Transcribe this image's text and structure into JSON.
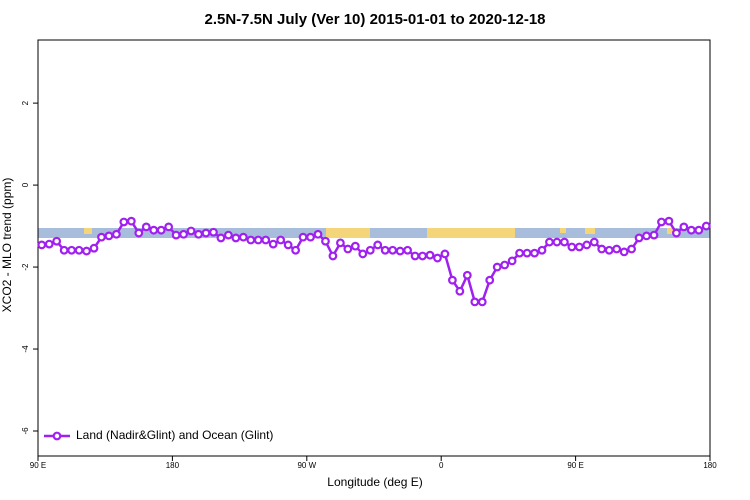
{
  "chart_data": {
    "type": "line",
    "title": "2.5N-7.5N July (Ver 10)   2015-01-01 to 2020-12-18",
    "x_label": "Longitude (deg E)",
    "y_label": "XCO2 - MLO trend (ppm)",
    "xlim": [
      90,
      540
    ],
    "xticks": [
      {
        "value": 90,
        "label": "90 E"
      },
      {
        "value": 180,
        "label": "180"
      },
      {
        "value": 270,
        "label": "90 W"
      },
      {
        "value": 360,
        "label": "0"
      },
      {
        "value": 450,
        "label": "90 E"
      },
      {
        "value": 540,
        "label": "180"
      }
    ],
    "ylim": [
      -6.61,
      3.54
    ],
    "yticks": [
      -6,
      -4,
      -2,
      0,
      2
    ],
    "legend": "bottomleft",
    "x": [
      92.5,
      97.5,
      102.5,
      107.5,
      112.5,
      117.5,
      122.5,
      127.5,
      132.5,
      137.5,
      142.5,
      147.5,
      152.5,
      157.5,
      162.5,
      167.5,
      172.5,
      177.5,
      182.5,
      187.5,
      192.5,
      197.5,
      202.5,
      207.5,
      212.5,
      217.5,
      222.5,
      227.5,
      232.5,
      237.5,
      242.5,
      247.5,
      252.5,
      257.5,
      262.5,
      267.5,
      272.5,
      277.5,
      282.5,
      287.5,
      292.5,
      297.5,
      302.5,
      307.5,
      312.5,
      317.5,
      322.5,
      327.5,
      332.5,
      337.5,
      342.5,
      347.5,
      352.5,
      357.5,
      362.5,
      367.5,
      372.5,
      377.5,
      382.5,
      387.5,
      392.5,
      397.5,
      402.5,
      407.5,
      412.5,
      417.5,
      422.5,
      427.5,
      432.5,
      437.5,
      442.5,
      447.5,
      452.5,
      457.5,
      462.5,
      467.5,
      472.5,
      477.5,
      482.5,
      487.5,
      492.5,
      497.5,
      502.5,
      507.5,
      512.5,
      517.5,
      522.5,
      527.5,
      532.5,
      537.5
    ],
    "series": [
      {
        "name": "Land (Nadir&Glint) and Ocean (Glint)",
        "color": "#a020f0",
        "values": [
          -1.46,
          -1.44,
          -1.37,
          -1.59,
          -1.59,
          -1.59,
          -1.61,
          -1.54,
          -1.27,
          -1.24,
          -1.2,
          -0.9,
          -0.88,
          -1.17,
          -1.02,
          -1.1,
          -1.1,
          -1.02,
          -1.22,
          -1.2,
          -1.12,
          -1.2,
          -1.17,
          -1.15,
          -1.29,
          -1.22,
          -1.29,
          -1.27,
          -1.34,
          -1.34,
          -1.34,
          -1.44,
          -1.34,
          -1.46,
          -1.59,
          -1.27,
          -1.27,
          -1.2,
          -1.37,
          -1.73,
          -1.41,
          -1.56,
          -1.49,
          -1.68,
          -1.59,
          -1.46,
          -1.59,
          -1.59,
          -1.61,
          -1.59,
          -1.73,
          -1.73,
          -1.71,
          -1.78,
          -1.68,
          -2.32,
          -2.59,
          -2.2,
          -2.85,
          -2.85,
          -2.32,
          -2.0,
          -1.95,
          -1.85,
          -1.66,
          -1.66,
          -1.66,
          -1.59,
          -1.39,
          -1.39,
          -1.39,
          -1.51,
          -1.51,
          -1.46,
          -1.39,
          -1.56,
          -1.59,
          -1.56,
          -1.63,
          -1.56,
          -1.29,
          -1.24,
          -1.22,
          -0.9,
          -0.88,
          -1.17,
          -1.02,
          -1.1,
          -1.1,
          -1.0
        ]
      }
    ]
  }
}
